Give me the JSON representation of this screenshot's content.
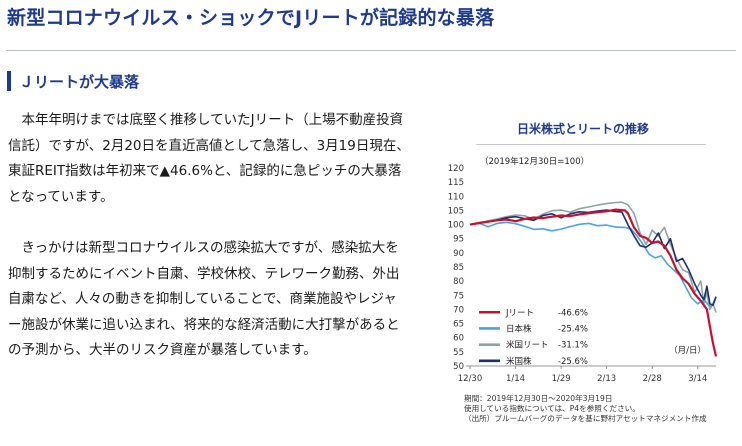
{
  "page": {
    "title": "新型コロナウイルス・ショックでJリートが記録的な暴落",
    "section_heading": "Ｊリートが大暴落",
    "paragraphs": [
      "　本年年明けまでは底堅く推移していたJリート（上場不動産投資信託）ですが、2月20日を直近高値として急落し、3月19日現在、東証REIT指数は年初来で▲46.6%と、記録的に急ピッチの大暴落となっています。",
      "　きっかけは新型コロナウイルスの感染拡大ですが、感染拡大を抑制するためにイベント自粛、学校休校、テレワーク勤務、外出自粛など、人々の動きを抑制していることで、商業施設やレジャー施設が休業に追い込まれ、将来的な経済活動に大打撃があるとの予測から、大半のリスク資産が暴落しています。"
    ]
  },
  "chart_notes": {
    "period": "期間：2019年12月30日～2020年3月19日",
    "indices": "使用している指数については、P4を参照ください。",
    "source": "（出所）ブルームバーグのデータを基に野村アセットマネジメント作成"
  },
  "chart_data": {
    "type": "line",
    "title": "日米株式とリートの推移",
    "subtitle": "（2019年12月30日=100）",
    "unit_label": "（月/日）",
    "x_ticks": [
      "12/30",
      "1/14",
      "1/29",
      "2/13",
      "2/28",
      "3/14"
    ],
    "x_tick_days": [
      0,
      15,
      30,
      45,
      60,
      75
    ],
    "y_ticks": [
      50,
      55,
      60,
      65,
      70,
      75,
      80,
      85,
      90,
      95,
      100,
      105,
      110,
      115,
      120
    ],
    "xlim": [
      0,
      81
    ],
    "ylim": [
      50,
      120
    ],
    "grid": false,
    "legend_position": "lower-left",
    "series": [
      {
        "name": "Jリート",
        "change": "-46.6%",
        "color": "#c8102e",
        "points": [
          [
            0,
            100
          ],
          [
            3,
            100.6
          ],
          [
            6,
            101
          ],
          [
            9,
            101.5
          ],
          [
            12,
            101.8
          ],
          [
            15,
            101.2
          ],
          [
            18,
            102
          ],
          [
            21,
            102.5
          ],
          [
            24,
            102.3
          ],
          [
            27,
            102.8
          ],
          [
            30,
            103.2
          ],
          [
            33,
            103
          ],
          [
            36,
            103.6
          ],
          [
            39,
            104
          ],
          [
            42,
            104.4
          ],
          [
            45,
            104.7
          ],
          [
            48,
            105.3
          ],
          [
            51,
            105
          ],
          [
            52,
            104
          ],
          [
            54,
            99
          ],
          [
            56,
            96
          ],
          [
            58,
            95.3
          ],
          [
            60,
            93.5
          ],
          [
            62,
            94
          ],
          [
            64,
            92.5
          ],
          [
            66,
            89
          ],
          [
            68,
            84
          ],
          [
            70,
            81
          ],
          [
            72,
            79
          ],
          [
            74,
            75.5
          ],
          [
            76,
            73
          ],
          [
            78,
            70
          ],
          [
            79,
            64
          ],
          [
            80,
            58
          ],
          [
            81,
            53.4
          ]
        ]
      },
      {
        "name": "日本株",
        "change": "-25.4%",
        "color": "#4ba3e0",
        "points": [
          [
            0,
            100
          ],
          [
            3,
            100.5
          ],
          [
            6,
            99.2
          ],
          [
            9,
            100.4
          ],
          [
            12,
            100.8
          ],
          [
            15,
            100.3
          ],
          [
            18,
            99.4
          ],
          [
            21,
            98.3
          ],
          [
            24,
            98.5
          ],
          [
            27,
            97.8
          ],
          [
            30,
            98.4
          ],
          [
            33,
            99.3
          ],
          [
            36,
            100.1
          ],
          [
            39,
            100.4
          ],
          [
            42,
            99.6
          ],
          [
            45,
            99.8
          ],
          [
            48,
            99.1
          ],
          [
            51,
            99
          ],
          [
            53,
            98.5
          ],
          [
            55,
            96
          ],
          [
            57,
            93
          ],
          [
            59,
            89.5
          ],
          [
            61,
            88.2
          ],
          [
            63,
            89
          ],
          [
            65,
            86
          ],
          [
            67,
            84
          ],
          [
            69,
            82
          ],
          [
            71,
            78
          ],
          [
            73,
            74
          ],
          [
            75,
            72
          ],
          [
            77,
            73.5
          ],
          [
            79,
            71
          ],
          [
            80,
            72
          ],
          [
            81,
            74.6
          ]
        ]
      },
      {
        "name": "米国リート",
        "change": "-31.1%",
        "color": "#8ea3a3",
        "points": [
          [
            0,
            100
          ],
          [
            3,
            100.6
          ],
          [
            6,
            101.3
          ],
          [
            9,
            102
          ],
          [
            12,
            102.8
          ],
          [
            15,
            103.4
          ],
          [
            18,
            103.1
          ],
          [
            21,
            101.9
          ],
          [
            24,
            103.7
          ],
          [
            27,
            104.9
          ],
          [
            30,
            105.1
          ],
          [
            33,
            104.4
          ],
          [
            36,
            105.6
          ],
          [
            39,
            106.2
          ],
          [
            42,
            106.9
          ],
          [
            45,
            107.4
          ],
          [
            48,
            107.8
          ],
          [
            50,
            107.9
          ],
          [
            52,
            107
          ],
          [
            54,
            104
          ],
          [
            56,
            97
          ],
          [
            58,
            93
          ],
          [
            60,
            98
          ],
          [
            62,
            96
          ],
          [
            64,
            99
          ],
          [
            66,
            93
          ],
          [
            68,
            88
          ],
          [
            70,
            84
          ],
          [
            72,
            83
          ],
          [
            74,
            76
          ],
          [
            76,
            80
          ],
          [
            77,
            72
          ],
          [
            78,
            76
          ],
          [
            79,
            70
          ],
          [
            80,
            72
          ],
          [
            81,
            68.9
          ]
        ]
      },
      {
        "name": "米国株",
        "change": "-25.6%",
        "color": "#1c2f6b",
        "points": [
          [
            0,
            100
          ],
          [
            3,
            100.4
          ],
          [
            6,
            101.1
          ],
          [
            9,
            101.6
          ],
          [
            12,
            102.4
          ],
          [
            15,
            102.8
          ],
          [
            18,
            102.1
          ],
          [
            21,
            101.5
          ],
          [
            24,
            103.2
          ],
          [
            27,
            103.8
          ],
          [
            30,
            102.4
          ],
          [
            33,
            103.8
          ],
          [
            36,
            104.5
          ],
          [
            39,
            104.3
          ],
          [
            42,
            104.8
          ],
          [
            45,
            105.1
          ],
          [
            48,
            104.6
          ],
          [
            50,
            104.4
          ],
          [
            52,
            100
          ],
          [
            54,
            96
          ],
          [
            56,
            92.5
          ],
          [
            58,
            92
          ],
          [
            60,
            93.5
          ],
          [
            62,
            97
          ],
          [
            64,
            91.5
          ],
          [
            66,
            95
          ],
          [
            68,
            87
          ],
          [
            70,
            88
          ],
          [
            72,
            84
          ],
          [
            74,
            79
          ],
          [
            76,
            75
          ],
          [
            77,
            73.5
          ],
          [
            78,
            78.2
          ],
          [
            79,
            72
          ],
          [
            80,
            71.5
          ],
          [
            81,
            74.4
          ]
        ]
      }
    ]
  }
}
